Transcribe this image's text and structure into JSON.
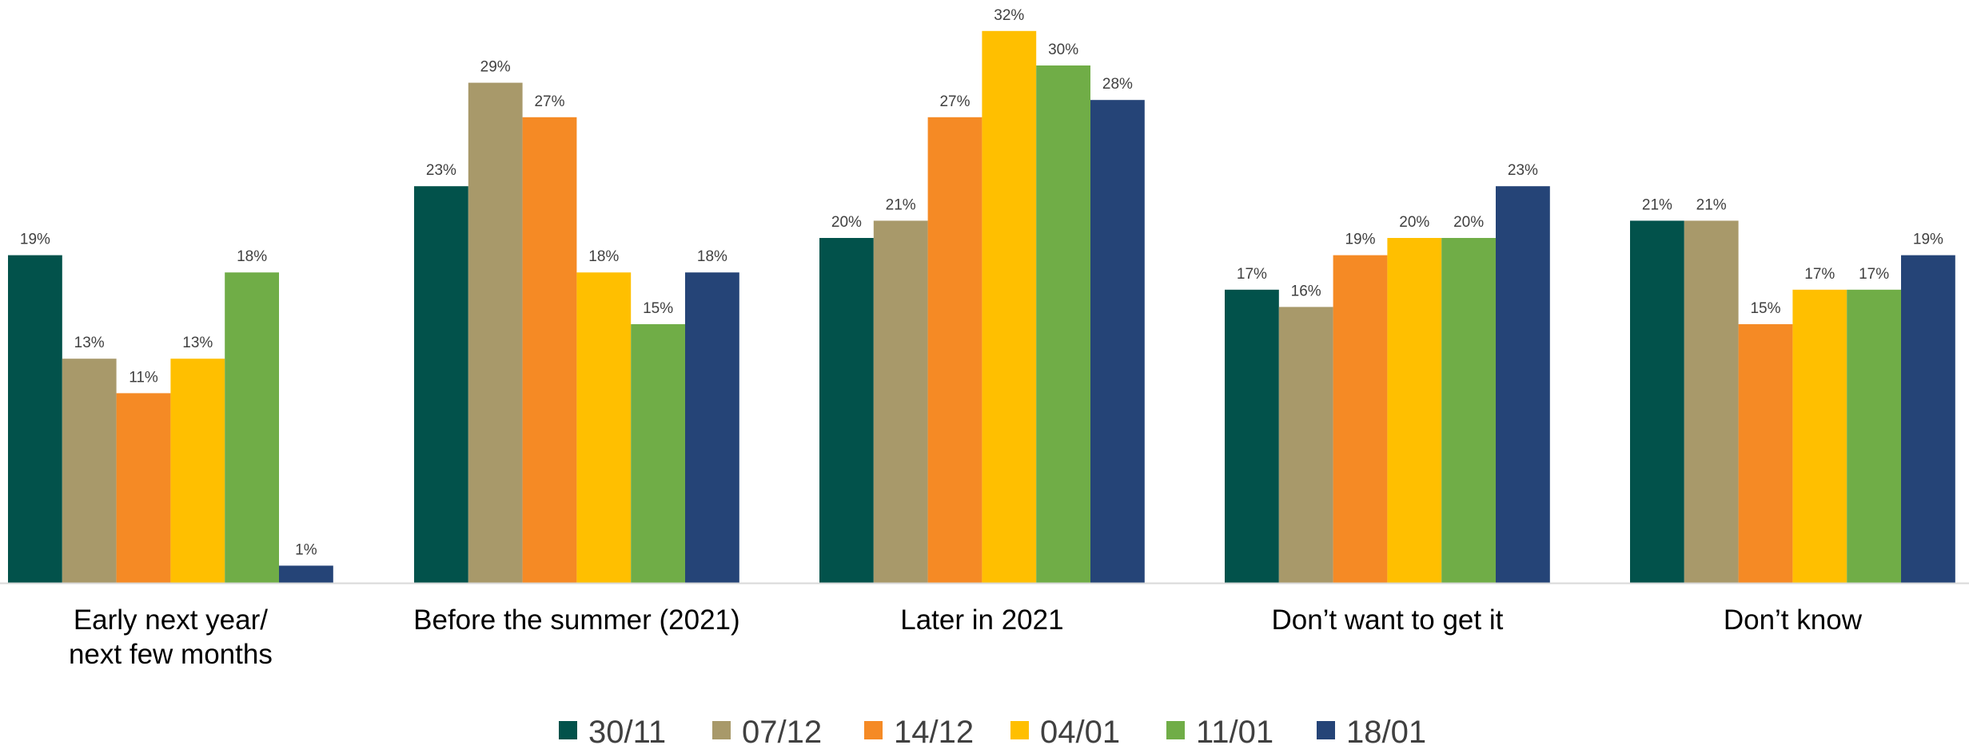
{
  "chart_data": {
    "type": "bar",
    "title": "",
    "xlabel": "",
    "ylabel": "",
    "ylim": [
      0,
      32
    ],
    "grid": false,
    "legend_position": "bottom",
    "value_suffix": "%",
    "categories": [
      [
        "Early next year/",
        "next few months"
      ],
      [
        "Before the summer (2021)"
      ],
      [
        "Later in 2021"
      ],
      [
        "Don’t want to get it"
      ],
      [
        "Don’t know"
      ]
    ],
    "series": [
      {
        "name": "30/11",
        "color": "#02524b",
        "values": [
          19,
          23,
          20,
          17,
          21
        ]
      },
      {
        "name": "07/12",
        "color": "#a8996a",
        "values": [
          13,
          29,
          21,
          16,
          21
        ]
      },
      {
        "name": "14/12",
        "color": "#f58a25",
        "values": [
          11,
          27,
          27,
          19,
          15
        ]
      },
      {
        "name": "04/01",
        "color": "#ffbf00",
        "values": [
          13,
          18,
          32,
          20,
          17
        ]
      },
      {
        "name": "11/01",
        "color": "#70ad47",
        "values": [
          18,
          15,
          30,
          20,
          17
        ]
      },
      {
        "name": "18/01",
        "color": "#254477",
        "values": [
          1,
          18,
          28,
          23,
          19
        ]
      }
    ],
    "axis_color": "#d9d9d9"
  }
}
